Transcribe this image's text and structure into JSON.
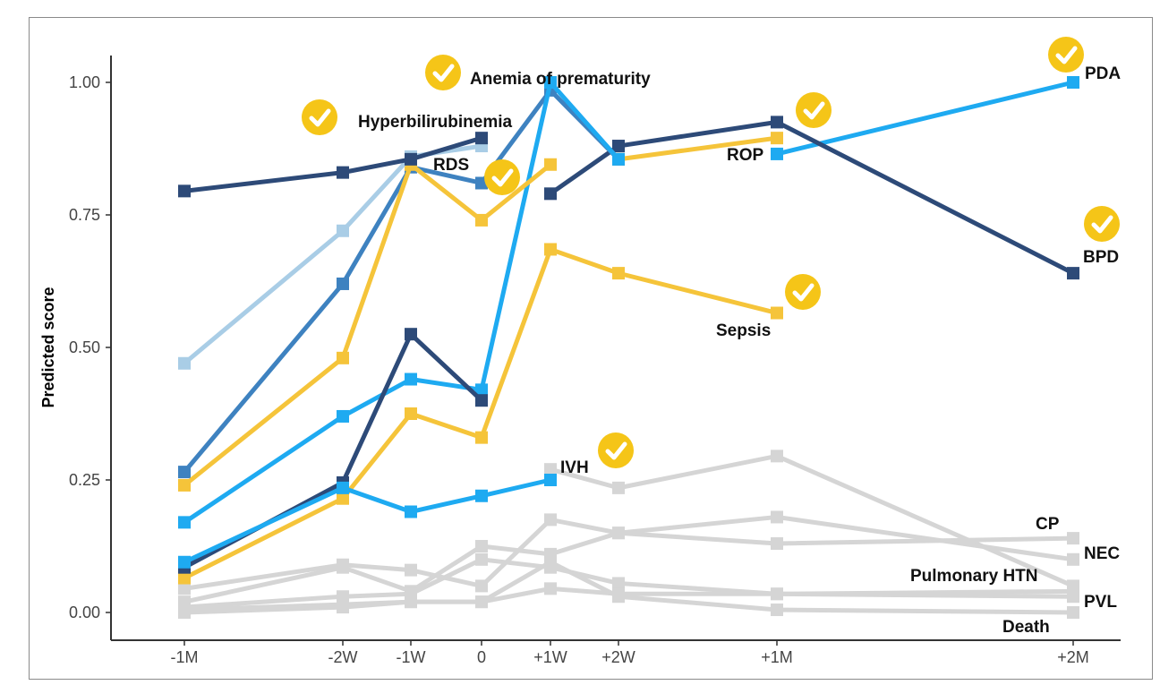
{
  "chart_data": {
    "type": "line",
    "title": "",
    "xlabel": "",
    "ylabel": "Predicted score",
    "ylim": [
      0,
      1.05
    ],
    "yticks": [
      "0.00",
      "0.25",
      "0.50",
      "0.75",
      "1.00"
    ],
    "x": [
      "-1M",
      "-2W",
      "-1W",
      "0",
      "+1W",
      "+2W",
      "+1M",
      "+2M"
    ],
    "check_color": "#f5c518",
    "series": [
      {
        "name": "PDA",
        "color": "#1eaaf1",
        "checked": true,
        "points": [
          [
            "+1M",
            0.865
          ],
          [
            "+2M",
            1.0
          ]
        ]
      },
      {
        "name": "BPD",
        "color": "#2d4a78",
        "checked": true,
        "points": [
          [
            "+1W",
            0.79
          ],
          [
            "+2W",
            0.88
          ],
          [
            "+1M",
            0.925
          ],
          [
            "+2M",
            0.64
          ]
        ]
      },
      {
        "name": "ROP",
        "color": "#f5c43a",
        "checked": true,
        "points": [
          [
            "+2W",
            0.855
          ],
          [
            "+1M",
            0.895
          ]
        ]
      },
      {
        "name": "Sepsis",
        "color": "#f5c43a",
        "checked": true,
        "points": [
          [
            "-1M",
            0.065
          ],
          [
            "-2W",
            0.215
          ],
          [
            "-1W",
            0.375
          ],
          [
            "0",
            0.33
          ],
          [
            "+1W",
            0.685
          ],
          [
            "+2W",
            0.64
          ],
          [
            "+1M",
            0.565
          ]
        ]
      },
      {
        "name": "Hyperbilirubinemia",
        "color": "#3e82c0",
        "checked": true,
        "points": [
          [
            "-1M",
            0.265
          ],
          [
            "-2W",
            0.62
          ],
          [
            "-1W",
            0.84
          ],
          [
            "0",
            0.81
          ],
          [
            "+1W",
            0.985
          ],
          [
            "+2W",
            0.855
          ]
        ]
      },
      {
        "name": "Anemia of prematurity",
        "color": "#1eaaf1",
        "checked": true,
        "points": [
          [
            "-1M",
            0.17
          ],
          [
            "-2W",
            0.37
          ],
          [
            "-1W",
            0.44
          ],
          [
            "0",
            0.42
          ],
          [
            "+1W",
            1.0
          ],
          [
            "+2W",
            0.855
          ]
        ]
      },
      {
        "name": "RDS",
        "color": "#f5c43a",
        "checked": true,
        "points": [
          [
            "-1M",
            0.24
          ],
          [
            "-2W",
            0.48
          ],
          [
            "-1W",
            0.845
          ],
          [
            "0",
            0.74
          ],
          [
            "+1W",
            0.845
          ]
        ]
      },
      {
        "name": "",
        "color": "#a9cde6",
        "checked": false,
        "points": [
          [
            "-1M",
            0.47
          ],
          [
            "-2W",
            0.72
          ],
          [
            "-1W",
            0.86
          ],
          [
            "0",
            0.88
          ]
        ]
      },
      {
        "name": "",
        "color": "#2d4a78",
        "checked": false,
        "points": [
          [
            "-1M",
            0.795
          ],
          [
            "-2W",
            0.83
          ],
          [
            "-1W",
            0.855
          ],
          [
            "0",
            0.895
          ]
        ]
      },
      {
        "name": "",
        "color": "#2d4a78",
        "checked": false,
        "points": [
          [
            "-1M",
            0.085
          ],
          [
            "-2W",
            0.245
          ],
          [
            "-1W",
            0.525
          ],
          [
            "0",
            0.4
          ]
        ]
      },
      {
        "name": "IVH",
        "color": "#1eaaf1",
        "checked": true,
        "points": [
          [
            "-1M",
            0.095
          ],
          [
            "-2W",
            0.235
          ],
          [
            "-1W",
            0.19
          ],
          [
            "0",
            0.22
          ],
          [
            "+1W",
            0.25
          ]
        ]
      },
      {
        "name": "",
        "color": "#d5d5d5",
        "checked": false,
        "points": [
          [
            "+1W",
            0.27
          ],
          [
            "+2W",
            0.235
          ],
          [
            "+1M",
            0.295
          ],
          [
            "+2M",
            0.05
          ]
        ]
      },
      {
        "name": "CP",
        "color": "#d5d5d5",
        "checked": false,
        "points": [
          [
            "-1M",
            0.045
          ],
          [
            "-2W",
            0.09
          ],
          [
            "-1W",
            0.08
          ],
          [
            "0",
            0.05
          ],
          [
            "+1W",
            0.175
          ],
          [
            "+2W",
            0.15
          ],
          [
            "+1M",
            0.13
          ],
          [
            "+2M",
            0.14
          ]
        ]
      },
      {
        "name": "NEC",
        "color": "#d5d5d5",
        "checked": false,
        "points": [
          [
            "-1M",
            0.02
          ],
          [
            "-2W",
            0.085
          ],
          [
            "-1W",
            0.04
          ],
          [
            "0",
            0.125
          ],
          [
            "+1W",
            0.11
          ],
          [
            "+2W",
            0.15
          ],
          [
            "+1M",
            0.18
          ],
          [
            "+2M",
            0.1
          ]
        ]
      },
      {
        "name": "Pulmonary HTN",
        "color": "#d5d5d5",
        "checked": false,
        "points": [
          [
            "-1M",
            0.01
          ],
          [
            "-2W",
            0.03
          ],
          [
            "-1W",
            0.035
          ],
          [
            "0",
            0.1
          ],
          [
            "+1W",
            0.085
          ],
          [
            "+2W",
            0.055
          ],
          [
            "+1M",
            0.035
          ],
          [
            "+2M",
            0.04
          ]
        ]
      },
      {
        "name": "PVL",
        "color": "#d5d5d5",
        "checked": false,
        "points": [
          [
            "-1M",
            0.005
          ],
          [
            "-2W",
            0.015
          ],
          [
            "-1W",
            0.02
          ],
          [
            "0",
            0.02
          ],
          [
            "+1W",
            0.045
          ],
          [
            "+2W",
            0.035
          ],
          [
            "+1M",
            0.035
          ],
          [
            "+2M",
            0.03
          ]
        ]
      },
      {
        "name": "Death",
        "color": "#d5d5d5",
        "checked": false,
        "points": [
          [
            "-1M",
            0.0
          ],
          [
            "-2W",
            0.01
          ],
          [
            "-1W",
            0.02
          ],
          [
            "0",
            0.02
          ],
          [
            "+1W",
            0.095
          ],
          [
            "+2W",
            0.03
          ],
          [
            "+1M",
            0.005
          ],
          [
            "+2M",
            0.0
          ]
        ]
      }
    ]
  }
}
